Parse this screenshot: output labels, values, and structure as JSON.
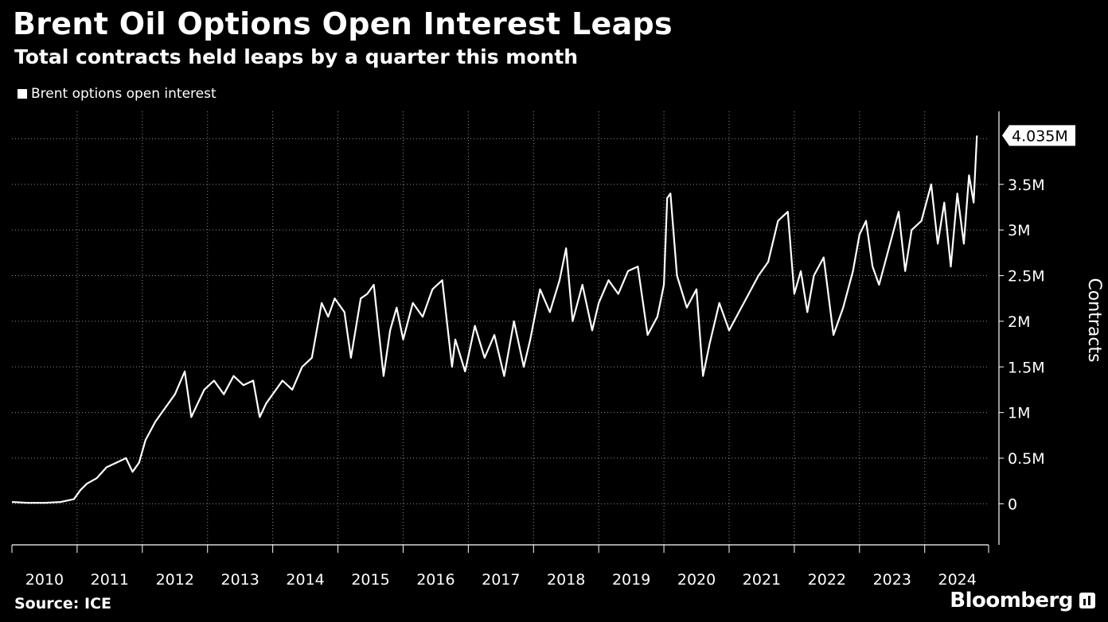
{
  "header": {
    "title": "Brent Oil Options Open Interest Leaps",
    "subtitle": "Total contracts held leaps by a quarter this month"
  },
  "legend": {
    "label": "Brent options open interest"
  },
  "footer": {
    "source": "Source: ICE",
    "brand": "Bloomberg"
  },
  "colors": {
    "background": "#000000",
    "line": "#ffffff",
    "grid": "#cccccc"
  },
  "chart_data": {
    "type": "line",
    "title": "Brent Oil Options Open Interest Leaps",
    "subtitle": "Total contracts held leaps by a quarter this month",
    "xlabel": "",
    "ylabel": "Contracts",
    "x_range": [
      2010.0,
      2024.98
    ],
    "ylim": [
      -0.45,
      4.3
    ],
    "y_ticks": [
      0,
      0.5,
      1,
      1.5,
      2,
      2.5,
      3,
      3.5
    ],
    "y_tick_labels": [
      "0",
      "0.5M",
      "1M",
      "1.5M",
      "2M",
      "2.5M",
      "3M",
      "3.5M"
    ],
    "x_tick_labels": [
      "2010",
      "2011",
      "2012",
      "2013",
      "2014",
      "2015",
      "2016",
      "2017",
      "2018",
      "2019",
      "2020",
      "2021",
      "2022",
      "2023",
      "2024"
    ],
    "last_value_label": "4.035M",
    "series": [
      {
        "name": "Brent options open interest",
        "x": [
          2010.0,
          2010.25,
          2010.5,
          2010.75,
          2010.95,
          2011.05,
          2011.15,
          2011.3,
          2011.45,
          2011.6,
          2011.75,
          2011.85,
          2011.95,
          2012.05,
          2012.2,
          2012.35,
          2012.5,
          2012.65,
          2012.75,
          2012.85,
          2012.95,
          2013.1,
          2013.25,
          2013.4,
          2013.55,
          2013.7,
          2013.8,
          2013.9,
          2014.0,
          2014.15,
          2014.3,
          2014.45,
          2014.6,
          2014.75,
          2014.85,
          2014.95,
          2015.1,
          2015.2,
          2015.35,
          2015.45,
          2015.55,
          2015.7,
          2015.8,
          2015.9,
          2016.0,
          2016.15,
          2016.3,
          2016.45,
          2016.6,
          2016.75,
          2016.8,
          2016.95,
          2017.1,
          2017.25,
          2017.4,
          2017.55,
          2017.7,
          2017.85,
          2017.95,
          2018.1,
          2018.25,
          2018.4,
          2018.5,
          2018.6,
          2018.75,
          2018.9,
          2019.0,
          2019.15,
          2019.3,
          2019.45,
          2019.6,
          2019.75,
          2019.9,
          2020.0,
          2020.05,
          2020.1,
          2020.2,
          2020.35,
          2020.5,
          2020.6,
          2020.7,
          2020.85,
          2021.0,
          2021.15,
          2021.3,
          2021.45,
          2021.6,
          2021.75,
          2021.9,
          2022.0,
          2022.1,
          2022.2,
          2022.3,
          2022.45,
          2022.6,
          2022.75,
          2022.9,
          2023.0,
          2023.1,
          2023.2,
          2023.3,
          2023.45,
          2023.6,
          2023.7,
          2023.8,
          2023.95,
          2024.1,
          2024.2,
          2024.3,
          2024.4,
          2024.5,
          2024.6,
          2024.68,
          2024.75,
          2024.8
        ],
        "values": [
          0.02,
          0.01,
          0.01,
          0.02,
          0.05,
          0.15,
          0.22,
          0.28,
          0.4,
          0.45,
          0.5,
          0.35,
          0.45,
          0.7,
          0.9,
          1.05,
          1.2,
          1.45,
          0.95,
          1.1,
          1.25,
          1.35,
          1.2,
          1.4,
          1.3,
          1.35,
          0.95,
          1.1,
          1.2,
          1.35,
          1.25,
          1.5,
          1.6,
          2.2,
          2.05,
          2.25,
          2.1,
          1.6,
          2.25,
          2.3,
          2.4,
          1.4,
          1.9,
          2.15,
          1.8,
          2.2,
          2.05,
          2.35,
          2.45,
          1.5,
          1.8,
          1.45,
          1.95,
          1.6,
          1.85,
          1.4,
          2.0,
          1.5,
          1.8,
          2.35,
          2.1,
          2.45,
          2.8,
          2.0,
          2.4,
          1.9,
          2.2,
          2.45,
          2.3,
          2.55,
          2.6,
          1.85,
          2.05,
          2.4,
          3.35,
          3.4,
          2.5,
          2.15,
          2.35,
          1.4,
          1.75,
          2.2,
          1.9,
          2.1,
          2.3,
          2.5,
          2.65,
          3.1,
          3.2,
          2.3,
          2.55,
          2.1,
          2.5,
          2.7,
          1.85,
          2.15,
          2.55,
          2.95,
          3.1,
          2.6,
          2.4,
          2.8,
          3.2,
          2.55,
          3.0,
          3.1,
          3.5,
          2.85,
          3.3,
          2.6,
          3.4,
          2.85,
          3.6,
          3.3,
          4.035
        ]
      }
    ]
  }
}
